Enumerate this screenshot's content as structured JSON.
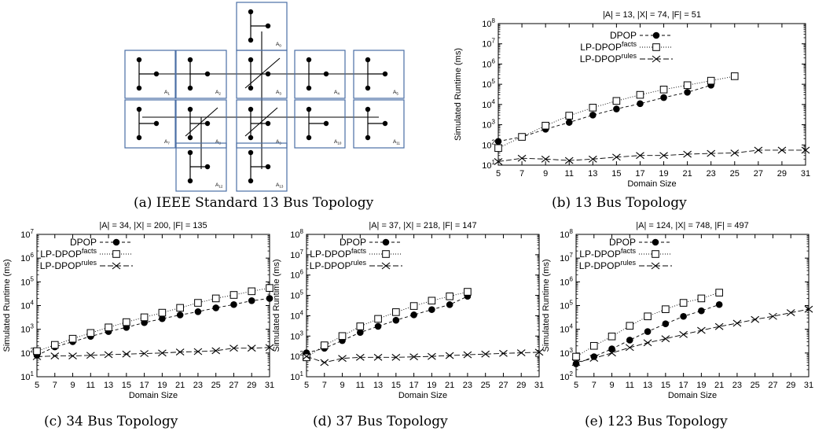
{
  "topology": {
    "caption": "(a) IEEE Standard 13 Bus Topology",
    "agents": [
      "A0",
      "A1",
      "A2",
      "A3",
      "A4",
      "A5",
      "A7",
      "A8",
      "A9",
      "A10",
      "A11",
      "A12",
      "A13"
    ]
  },
  "charts": [
    {
      "id": "b",
      "title": "|A| = 13, |X| = 74, |F| = 51",
      "caption": "(b) 13 Bus Topology",
      "xlabel": "Domain Size",
      "ylabel": "Simulated Runtime (ms)",
      "xticks": [
        5,
        7,
        9,
        11,
        13,
        15,
        17,
        19,
        21,
        23,
        25,
        27,
        29,
        31
      ],
      "yexp": [
        1,
        2,
        3,
        4,
        5,
        6,
        7,
        8
      ]
    },
    {
      "id": "c",
      "title": "|A| = 34, |X| = 200, |F| = 135",
      "caption": "(c) 34 Bus Topology",
      "xlabel": "Domain Size",
      "ylabel": "Simulated Runtime (ms)",
      "xticks": [
        5,
        7,
        9,
        11,
        13,
        15,
        17,
        19,
        21,
        23,
        25,
        27,
        29,
        31
      ],
      "yexp": [
        1,
        2,
        3,
        4,
        5,
        6,
        7
      ]
    },
    {
      "id": "d",
      "title": "|A| = 37, |X| = 218, |F| = 147",
      "caption": "(d) 37 Bus Topology",
      "xlabel": "Domain Size",
      "ylabel": "Simulated Runtime (ms)",
      "xticks": [
        5,
        7,
        9,
        11,
        13,
        15,
        17,
        19,
        21,
        23,
        25,
        27,
        29,
        31
      ],
      "yexp": [
        1,
        2,
        3,
        4,
        5,
        6,
        7,
        8
      ]
    },
    {
      "id": "e",
      "title": "|A| = 124, |X| = 748, |F| = 497",
      "caption": "(e) 123 Bus Topology",
      "xlabel": "Domain Size",
      "ylabel": "Simulated Runtime (ms)",
      "xticks": [
        5,
        7,
        9,
        11,
        13,
        15,
        17,
        19,
        21,
        23,
        25,
        27,
        29,
        31
      ],
      "yexp": [
        2,
        3,
        4,
        5,
        6,
        7,
        8
      ]
    }
  ],
  "legend": {
    "dpop": "DPOP",
    "facts_base": "LP-DPOP",
    "facts_sup": "facts",
    "rules_base": "LP-DPOP",
    "rules_sup": "rules"
  },
  "chart_data": [
    {
      "type": "line",
      "title": "|A| = 13, |X| = 74, |F| = 51",
      "xlabel": "Domain Size",
      "ylabel": "Simulated Runtime (ms)",
      "xlim": [
        5,
        31
      ],
      "ylim": [
        10,
        100000000
      ],
      "yscale": "log",
      "legend": "top-right",
      "series": [
        {
          "name": "DPOP",
          "marker": "filled-circle",
          "x": [
            5,
            7,
            9,
            11,
            13,
            15,
            17,
            19,
            21,
            23
          ],
          "y": [
            150,
            250,
            600,
            1300,
            3000,
            6000,
            11000,
            22000,
            40000,
            90000
          ]
        },
        {
          "name": "LP-DPOP facts",
          "marker": "open-square",
          "x": [
            5,
            7,
            9,
            11,
            13,
            15,
            17,
            19,
            21,
            23,
            25
          ],
          "y": [
            70,
            250,
            900,
            2800,
            7000,
            15000,
            30000,
            55000,
            90000,
            150000,
            250000
          ]
        },
        {
          "name": "LP-DPOP rules",
          "marker": "x",
          "x": [
            5,
            7,
            9,
            11,
            13,
            15,
            17,
            19,
            21,
            23,
            25,
            27,
            29,
            31
          ],
          "y": [
            15,
            22,
            20,
            17,
            20,
            25,
            30,
            30,
            35,
            38,
            40,
            55,
            55,
            55
          ]
        }
      ]
    },
    {
      "type": "line",
      "title": "|A| = 34, |X| = 200, |F| = 135",
      "xlabel": "Domain Size",
      "ylabel": "Simulated Runtime (ms)",
      "xlim": [
        5,
        31
      ],
      "ylim": [
        10,
        10000000
      ],
      "yscale": "log",
      "legend": "top-left",
      "series": [
        {
          "name": "DPOP",
          "marker": "filled-circle",
          "x": [
            5,
            7,
            9,
            11,
            13,
            15,
            17,
            19,
            21,
            23,
            25,
            27,
            29,
            31
          ],
          "y": [
            80,
            180,
            300,
            500,
            800,
            1200,
            1900,
            2800,
            4000,
            5500,
            8000,
            11000,
            16000,
            20000
          ]
        },
        {
          "name": "LP-DPOP facts",
          "marker": "open-square",
          "x": [
            5,
            7,
            9,
            11,
            13,
            15,
            17,
            19,
            21,
            23,
            25,
            27,
            29,
            31
          ],
          "y": [
            120,
            220,
            400,
            700,
            1200,
            2000,
            3200,
            5000,
            8000,
            13000,
            20000,
            28000,
            40000,
            55000
          ]
        },
        {
          "name": "LP-DPOP rules",
          "marker": "x",
          "x": [
            5,
            7,
            9,
            11,
            13,
            15,
            17,
            19,
            21,
            23,
            25,
            27,
            29,
            31
          ],
          "y": [
            70,
            75,
            75,
            80,
            85,
            90,
            95,
            100,
            110,
            115,
            125,
            160,
            160,
            170
          ]
        }
      ]
    },
    {
      "type": "line",
      "title": "|A| = 37, |X| = 218, |F| = 147",
      "xlabel": "Domain Size",
      "ylabel": "Simulated Runtime (ms)",
      "xlim": [
        5,
        31
      ],
      "ylim": [
        10,
        100000000
      ],
      "yscale": "log",
      "legend": "top-right",
      "series": [
        {
          "name": "DPOP",
          "marker": "filled-circle",
          "x": [
            5,
            7,
            9,
            11,
            13,
            15,
            17,
            19,
            21,
            23
          ],
          "y": [
            150,
            250,
            600,
            1500,
            3000,
            6000,
            11000,
            20000,
            35000,
            90000
          ]
        },
        {
          "name": "LP-DPOP facts",
          "marker": "open-square",
          "x": [
            5,
            7,
            9,
            11,
            13,
            15,
            17,
            19,
            21,
            23
          ],
          "y": [
            90,
            350,
            1000,
            3000,
            7000,
            15000,
            30000,
            55000,
            90000,
            150000
          ]
        },
        {
          "name": "LP-DPOP rules",
          "marker": "x",
          "x": [
            5,
            7,
            9,
            11,
            13,
            15,
            17,
            19,
            21,
            23,
            25,
            27,
            29,
            31
          ],
          "y": [
            100,
            50,
            80,
            90,
            90,
            90,
            95,
            100,
            110,
            120,
            130,
            140,
            150,
            160
          ]
        }
      ]
    },
    {
      "type": "line",
      "title": "|A| = 124, |X| = 748, |F| = 497",
      "xlabel": "Domain Size",
      "ylabel": "Simulated Runtime (ms)",
      "xlim": [
        5,
        31
      ],
      "ylim": [
        100,
        100000000
      ],
      "yscale": "log",
      "legend": "top-right",
      "series": [
        {
          "name": "DPOP",
          "marker": "filled-circle",
          "x": [
            5,
            7,
            9,
            11,
            13,
            15,
            17,
            19,
            21
          ],
          "y": [
            350,
            700,
            1500,
            3500,
            8000,
            17000,
            35000,
            60000,
            110000
          ]
        },
        {
          "name": "LP-DPOP facts",
          "marker": "open-square",
          "x": [
            5,
            7,
            9,
            11,
            13,
            15,
            17,
            19,
            21
          ],
          "y": [
            700,
            2000,
            5000,
            14000,
            35000,
            70000,
            130000,
            200000,
            350000
          ]
        },
        {
          "name": "LP-DPOP rules",
          "marker": "x",
          "x": [
            5,
            7,
            9,
            11,
            13,
            15,
            17,
            19,
            21,
            23,
            25,
            27,
            29,
            31
          ],
          "y": [
            400,
            600,
            1000,
            1700,
            2700,
            4000,
            6000,
            9000,
            13000,
            18000,
            26000,
            35000,
            50000,
            70000
          ]
        }
      ]
    }
  ]
}
